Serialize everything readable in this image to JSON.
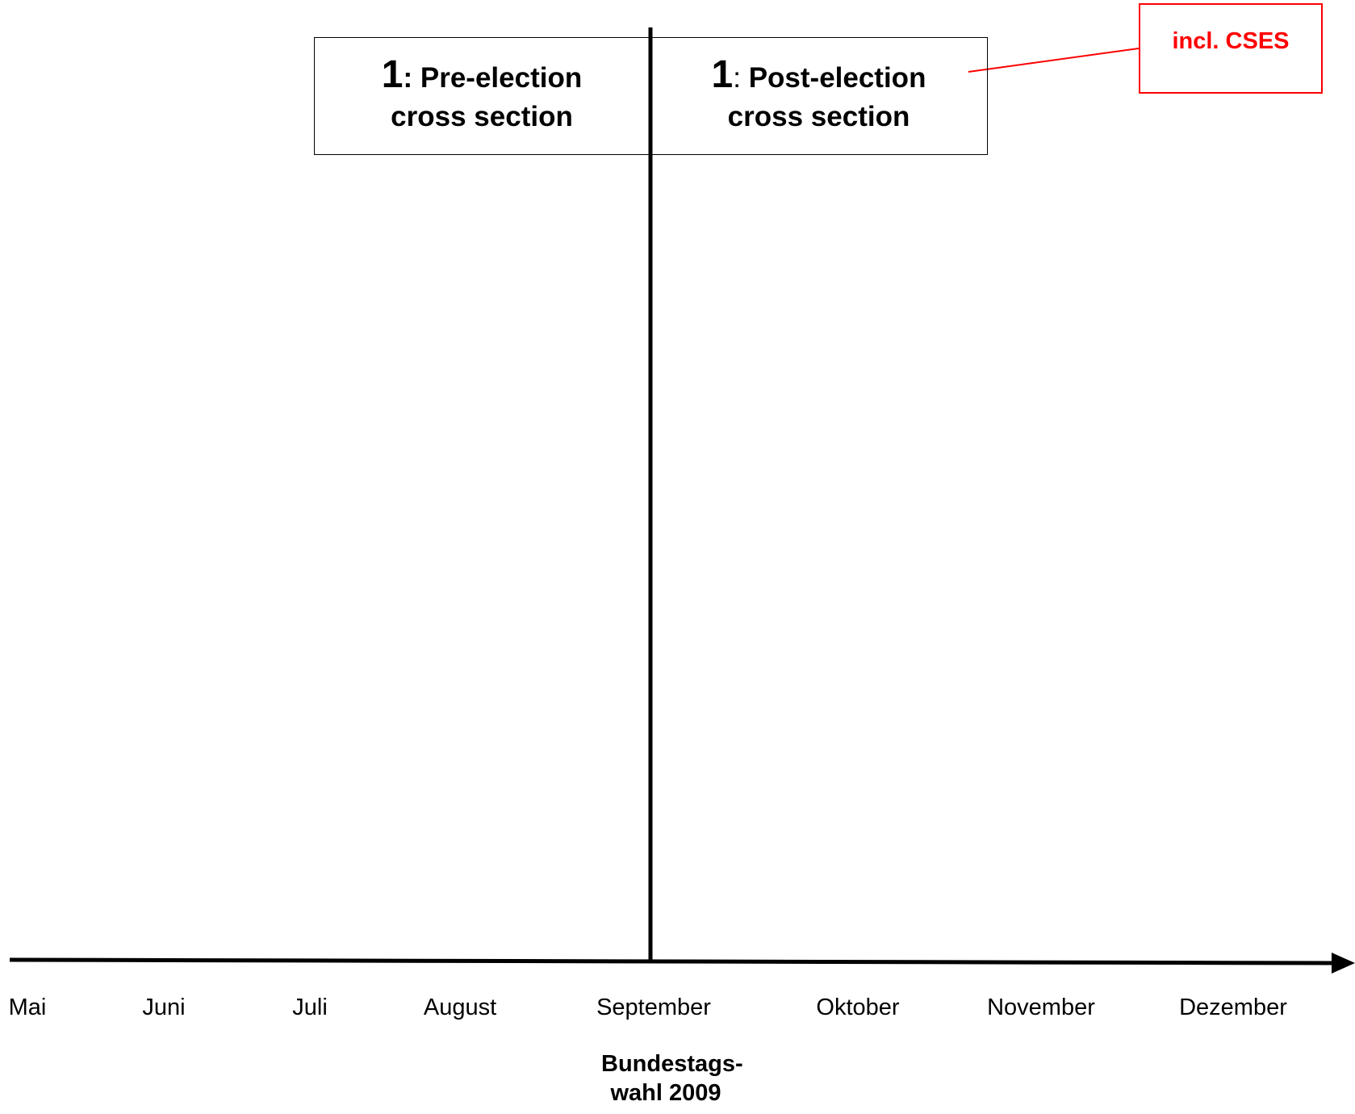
{
  "phases": [
    {
      "number": "1",
      "separator": ": ",
      "title_line1": "Pre-election",
      "title_line2": "cross section"
    },
    {
      "number": "1",
      "separator": ": ",
      "title_line1": "Post-election",
      "title_line2": "cross section"
    }
  ],
  "note": {
    "text": "incl. CSES",
    "color": "#ff0000"
  },
  "timeline": {
    "months": [
      "Mai",
      "Juni",
      "Juli",
      "August",
      "September",
      "Oktober",
      "November",
      "Dezember"
    ],
    "event_label_line1": "Bundestags-",
    "event_label_line2": "wahl 2009"
  },
  "colors": {
    "lines": "#000000",
    "note": "#ff0000"
  }
}
